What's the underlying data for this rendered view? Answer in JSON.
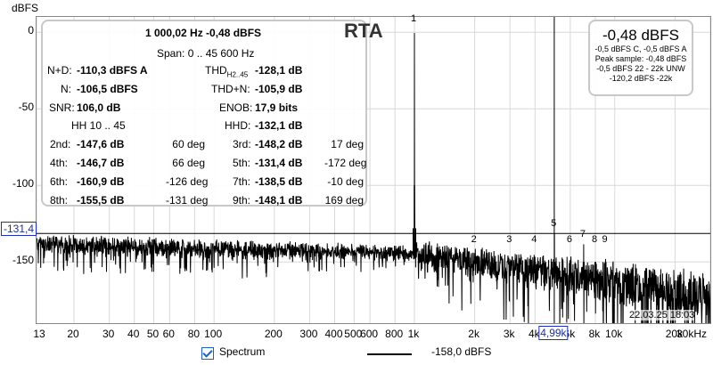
{
  "y_unit": "dBFS",
  "y_ticks": [
    "0",
    "-50",
    "-100",
    "-150"
  ],
  "x_ticks": [
    "13",
    "20",
    "30",
    "40",
    "50",
    "60",
    "80",
    "100",
    "200",
    "300",
    "400",
    "500",
    "600",
    "800",
    "1k",
    "2k",
    "3k",
    "4k",
    "5k",
    "6k",
    "8k",
    "10k",
    "20k",
    "30kHz"
  ],
  "cursor_x_label": "4,99k",
  "cursor_y_label": "-131,4",
  "rta_label": "RTA",
  "stats": {
    "title": "1 000,02 Hz  -0,48 dBFS",
    "span": "Span: 0 .. 45 600 Hz",
    "nd_label": "N+D:",
    "nd_value": "-110,3 dBFS A",
    "thd45_label": "THD",
    "thd45_sub": "H2..45",
    "thd45_value": "-128,1 dB",
    "n_label": "N:",
    "n_value": "-106,5 dBFS",
    "thdn_label": "THD+N:",
    "thdn_value": "-105,9 dB",
    "snr_label": "SNR:",
    "snr_value": "106,0 dB",
    "enob_label": "ENOB:",
    "enob_value": "17,9 bits",
    "hh_label": "HH 10 .. 45",
    "hhd_label": "HHD:",
    "hhd_value": "-132,1 dB",
    "harmonics": [
      {
        "label": "2nd:",
        "value": "-147,6 dB",
        "phase": "60 deg"
      },
      {
        "label": "3rd:",
        "value": "-148,2 dB",
        "phase": "17 deg"
      },
      {
        "label": "4th:",
        "value": "-146,7 dB",
        "phase": "66 deg"
      },
      {
        "label": "5th:",
        "value": "-131,4 dB",
        "phase": "-172 deg"
      },
      {
        "label": "6th:",
        "value": "-160,9 dB",
        "phase": "-126 deg"
      },
      {
        "label": "7th:",
        "value": "-138,5 dB",
        "phase": "-10 deg"
      },
      {
        "label": "8th:",
        "value": "-155,5 dB",
        "phase": "-131 deg"
      },
      {
        "label": "9th:",
        "value": "-148,1 dB",
        "phase": "169 deg"
      }
    ]
  },
  "peak_panel": {
    "value": "-0,48 dBFS",
    "lines": [
      "-0,5 dBFS C, -0,5 dBFS A",
      "Peak sample: -0,48 dBFS",
      "-0,5 dBFS 22 - 22k UNW",
      "-120,2 dBFS -22k"
    ]
  },
  "harmonic_markers": [
    "1",
    "2",
    "3",
    "4",
    "5",
    "6",
    "7",
    "8",
    "9"
  ],
  "timestamp": "22.03.25 18:03",
  "legend": {
    "spectrum_label": "Spectrum",
    "spectrum_checked": true,
    "level_label": "-158,0 dBFS"
  },
  "chart_data": {
    "type": "line",
    "x_scale": "log",
    "xlim": [
      13,
      30000
    ],
    "ylim": [
      -190,
      10
    ],
    "ylabel": "dBFS",
    "fundamental": {
      "freq_hz": 1000.02,
      "level_dbfs": -0.48
    },
    "cursor": {
      "freq_hz": 4990,
      "level_dbfs": -131.4
    },
    "harmonics": [
      {
        "n": 2,
        "freq_hz": 2000,
        "level_db": -147.6
      },
      {
        "n": 3,
        "freq_hz": 3000,
        "level_db": -148.2
      },
      {
        "n": 4,
        "freq_hz": 4000,
        "level_db": -146.7
      },
      {
        "n": 5,
        "freq_hz": 5000,
        "level_db": -131.4
      },
      {
        "n": 6,
        "freq_hz": 6000,
        "level_db": -160.9
      },
      {
        "n": 7,
        "freq_hz": 7000,
        "level_db": -138.5
      },
      {
        "n": 8,
        "freq_hz": 8000,
        "level_db": -155.5
      },
      {
        "n": 9,
        "freq_hz": 9000,
        "level_db": -148.1
      }
    ],
    "series": [
      {
        "name": "Spectrum",
        "color": "#000000"
      }
    ]
  }
}
